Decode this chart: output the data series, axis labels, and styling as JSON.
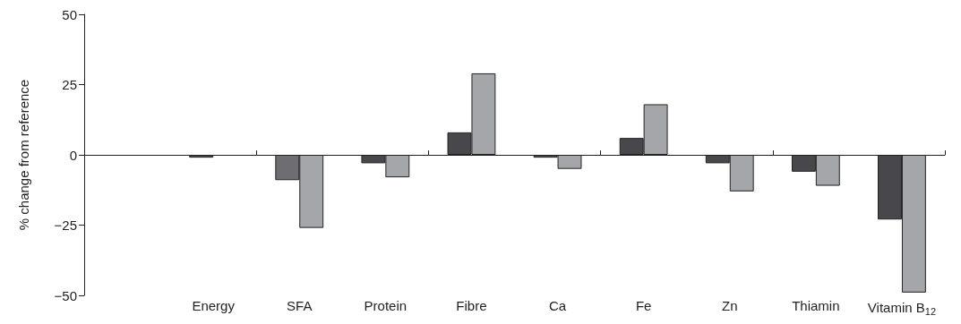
{
  "chart_data": {
    "type": "bar",
    "ylabel": "% change from reference",
    "categories": [
      null,
      "Energy",
      "SFA",
      "Protein",
      "Fibre",
      "Ca",
      "Fe",
      "Zn",
      "Thiamin",
      "Vitamin B$_{12}$"
    ],
    "series": [
      {
        "color": "#48484c",
        "colors": [
          "#48484c",
          "#48484c",
          "#6e6e72",
          "#48484c",
          "#48484c",
          "#48484c",
          "#48484c",
          "#48484c",
          "#48484c",
          "#48484c"
        ],
        "values": [
          null,
          -1,
          -9,
          -3,
          8,
          -1,
          6,
          -3,
          -6,
          -23
        ]
      },
      {
        "color": "#a5a6aa",
        "values": [
          null,
          null,
          -26,
          -8,
          29,
          -5,
          18,
          -13,
          -11,
          -49
        ]
      }
    ],
    "ylim": [
      -50,
      50
    ],
    "yticks": [
      -50,
      -25,
      0,
      25,
      50
    ]
  }
}
